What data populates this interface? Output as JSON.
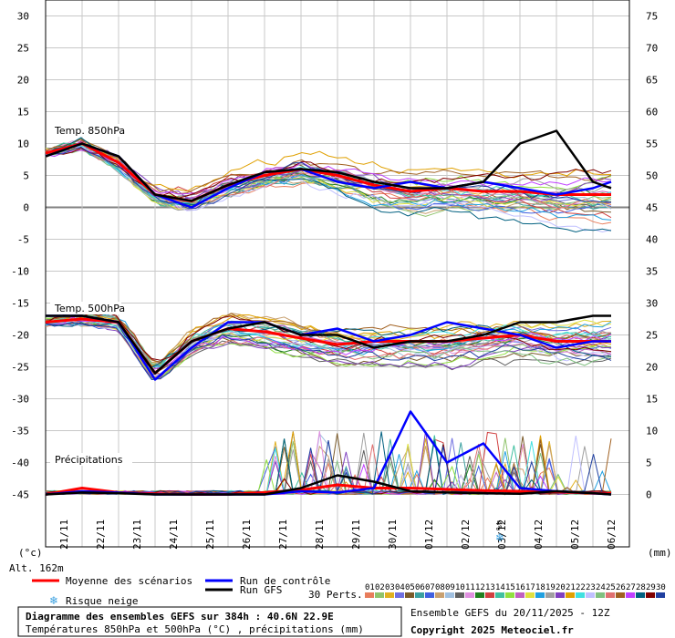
{
  "chart_data": {
    "type": "line",
    "title": "Diagramme des ensembles GEFS sur 384h : 40.6N 22.9E",
    "subtitle": "Températures 850hPa et 500hPa (°C) , précipitations (mm)",
    "run_info": "Ensemble GEFS du 20/11/2025 - 12Z",
    "copyright": "Copyright 2025 Meteociel.fr",
    "altitude": "Alt. 162m",
    "left_unit": "(°c)",
    "right_unit": "(mm)",
    "grid": true,
    "panel_labels": {
      "t850": "Temp. 850hPa",
      "t500": "Temp. 500hPa",
      "precip": "Précipitations"
    },
    "legend": {
      "mean": "Moyenne des scénarios",
      "control": "Run de contrôle",
      "gfs": "Run GFS",
      "snow": "Risque neige",
      "perts_label": "30 Perts.",
      "pert_numbers": [
        "01",
        "02",
        "03",
        "04",
        "05",
        "06",
        "07",
        "08",
        "09",
        "10",
        "11",
        "12",
        "13",
        "14",
        "15",
        "16",
        "17",
        "18",
        "19",
        "20",
        "21",
        "22",
        "23",
        "24",
        "25",
        "26",
        "27",
        "28",
        "29",
        "30"
      ],
      "pert_colors": [
        "#e87d5b",
        "#8fc36b",
        "#e0b020",
        "#6f6fe0",
        "#7a5a2a",
        "#3aa0a0",
        "#4060e0",
        "#c8a070",
        "#a0c0e0",
        "#606060",
        "#e090e0",
        "#208020",
        "#d04040",
        "#40c0a0",
        "#90e040",
        "#c060c0",
        "#e0e040",
        "#20a0e0",
        "#a0a0a0",
        "#8040c0",
        "#e0a000",
        "#40e0e0",
        "#c0c0ff",
        "#80c080",
        "#e07070",
        "#a06020",
        "#c040ff",
        "#006080",
        "#800000",
        "#2040a0"
      ]
    },
    "left_yticks": [
      30,
      25,
      20,
      15,
      10,
      5,
      0,
      -5,
      -10,
      -15,
      -20,
      -25,
      -30,
      -35,
      -40,
      -45
    ],
    "right_yticks": [
      75,
      70,
      65,
      60,
      55,
      50,
      45,
      40,
      35,
      30,
      25,
      20,
      15,
      10,
      5,
      0
    ],
    "ylim": [
      -45,
      30
    ],
    "snow_marker": {
      "date": "03/12",
      "label": "4%"
    },
    "x_dates": [
      "21/11",
      "22/11",
      "23/11",
      "24/11",
      "25/11",
      "26/11",
      "27/11",
      "28/11",
      "29/11",
      "30/11",
      "01/12",
      "02/12",
      "03/12",
      "04/12",
      "05/12",
      "06/12"
    ],
    "x_day_offset": [
      0.5,
      16.0
    ],
    "series": [
      {
        "name": "Moyenne des scénarios",
        "panel": "t850",
        "color": "#ff0000",
        "x": [
          0,
          1,
          2,
          3,
          4,
          5,
          6,
          7,
          8,
          9,
          10,
          11,
          12,
          13,
          14,
          15,
          15.5
        ],
        "y": [
          8.5,
          10,
          7,
          2,
          1,
          3.5,
          5,
          6,
          5,
          3.5,
          2.5,
          3,
          2.5,
          2.5,
          2,
          2,
          2
        ]
      },
      {
        "name": "Run de contrôle",
        "panel": "t850",
        "color": "#0000ff",
        "x": [
          0,
          1,
          2,
          3,
          4,
          5,
          6,
          7,
          8,
          9,
          10,
          11,
          12,
          13,
          14,
          15,
          15.5
        ],
        "y": [
          8,
          10,
          8,
          2,
          0,
          3,
          5.5,
          6,
          4,
          3,
          4,
          3,
          4,
          3,
          2,
          3,
          4
        ]
      },
      {
        "name": "Run GFS",
        "panel": "t850",
        "color": "#000000",
        "x": [
          0,
          1,
          2,
          3,
          4,
          5,
          6,
          7,
          8,
          9,
          10,
          11,
          12,
          13,
          14,
          15,
          15.5
        ],
        "y": [
          8,
          10,
          8,
          2,
          1,
          3.5,
          5.5,
          6,
          5.5,
          4,
          3,
          3,
          4,
          10,
          12,
          4,
          3
        ]
      },
      {
        "name": "Moyenne des scénarios",
        "panel": "t500",
        "color": "#ff0000",
        "x": [
          0,
          1,
          2,
          3,
          4,
          5,
          6,
          7,
          8,
          9,
          10,
          11,
          12,
          13,
          14,
          15,
          15.5
        ],
        "y": [
          -18,
          -17.5,
          -18,
          -26,
          -21,
          -19,
          -19.5,
          -20.5,
          -21.5,
          -21,
          -21,
          -21,
          -20.5,
          -20,
          -21,
          -21,
          -21
        ]
      },
      {
        "name": "Run de contrôle",
        "panel": "t500",
        "color": "#0000ff",
        "x": [
          0,
          1,
          2,
          3,
          4,
          5,
          6,
          7,
          8,
          9,
          10,
          11,
          12,
          13,
          14,
          15,
          15.5
        ],
        "y": [
          -17,
          -17,
          -18,
          -27,
          -22,
          -18,
          -18,
          -20,
          -19,
          -21,
          -20,
          -18,
          -19,
          -20,
          -22,
          -21,
          -21
        ]
      },
      {
        "name": "Run GFS",
        "panel": "t500",
        "color": "#000000",
        "x": [
          0,
          1,
          2,
          3,
          4,
          5,
          6,
          7,
          8,
          9,
          10,
          11,
          12,
          13,
          14,
          15,
          15.5
        ],
        "y": [
          -17,
          -17,
          -18,
          -26,
          -21,
          -19,
          -18,
          -20,
          -20,
          -22,
          -21,
          -21,
          -20,
          -18,
          -18,
          -17,
          -17
        ]
      },
      {
        "name": "Moyenne des scénarios",
        "panel": "precip",
        "color": "#ff0000",
        "x": [
          0,
          1,
          2,
          3,
          4,
          5,
          6,
          7,
          8,
          9,
          10,
          11,
          12,
          13,
          14,
          15,
          15.5
        ],
        "y": [
          0,
          1,
          0.3,
          0.1,
          0,
          0,
          0.3,
          0.7,
          1.5,
          1,
          1,
          0.8,
          0.6,
          0.5,
          0.4,
          0.2,
          0.2
        ]
      },
      {
        "name": "Run de contrôle",
        "panel": "precip",
        "color": "#0000ff",
        "x": [
          0,
          1,
          2,
          3,
          4,
          5,
          6,
          7,
          8,
          9,
          10,
          11,
          12,
          13,
          14,
          15,
          15.5
        ],
        "y": [
          0,
          0.5,
          0.3,
          0,
          0,
          0,
          0,
          0.5,
          0.3,
          1,
          13,
          5,
          8,
          1,
          0.5,
          0.2,
          0
        ]
      },
      {
        "name": "Run GFS",
        "panel": "precip",
        "color": "#000000",
        "x": [
          0,
          1,
          2,
          3,
          4,
          5,
          6,
          7,
          8,
          9,
          10,
          11,
          12,
          13,
          14,
          15,
          15.5
        ],
        "y": [
          0,
          0.3,
          0.2,
          0,
          0,
          0,
          0,
          1,
          3,
          2,
          0.5,
          0.3,
          0.2,
          0.1,
          0.5,
          0.2,
          0
        ]
      }
    ]
  }
}
